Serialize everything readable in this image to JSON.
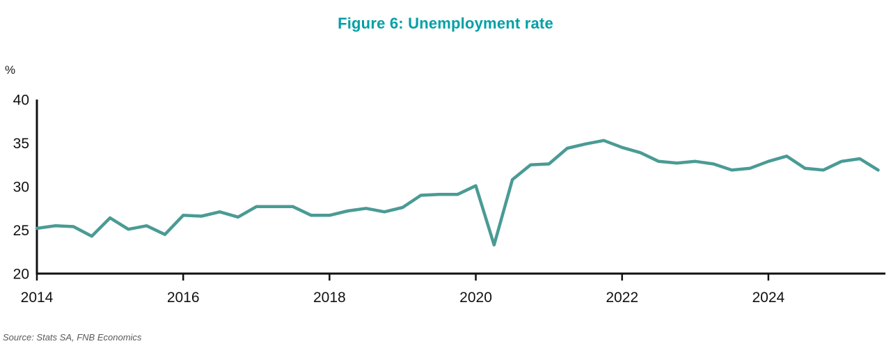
{
  "title": "Figure 6: Unemployment rate",
  "y_unit": "%",
  "source": "Source: Stats SA, FNB Economics",
  "colors": {
    "title": "#00A0A5",
    "line": "#4A9B95",
    "axis": "#111111",
    "tick_label": "#111111",
    "source_text": "#595959"
  },
  "chart_data": {
    "type": "line",
    "title": "Figure 6: Unemployment rate",
    "xlabel": "",
    "ylabel": "%",
    "series_name": "Unemployment rate",
    "x_frequency": "quarterly",
    "x_start": 2014,
    "x_step": 0.25,
    "values": [
      25.2,
      25.5,
      25.4,
      24.3,
      26.4,
      25.1,
      25.5,
      24.5,
      26.7,
      26.6,
      27.1,
      26.5,
      27.7,
      27.7,
      27.7,
      26.7,
      26.7,
      27.2,
      27.5,
      27.1,
      27.6,
      29.0,
      29.1,
      29.1,
      30.1,
      23.3,
      30.8,
      32.5,
      32.6,
      34.4,
      34.9,
      35.3,
      34.5,
      33.9,
      32.9,
      32.7,
      32.9,
      32.6,
      31.9,
      32.1,
      32.9,
      33.5,
      32.1,
      31.9,
      32.9,
      33.2,
      31.9
    ],
    "x_ticks": [
      2014,
      2016,
      2018,
      2020,
      2022,
      2024
    ],
    "y_ticks": [
      20,
      25,
      30,
      35,
      40
    ],
    "xlim": [
      2014,
      2025.6
    ],
    "ylim": [
      20,
      40
    ],
    "grid": false,
    "legend": "none"
  }
}
